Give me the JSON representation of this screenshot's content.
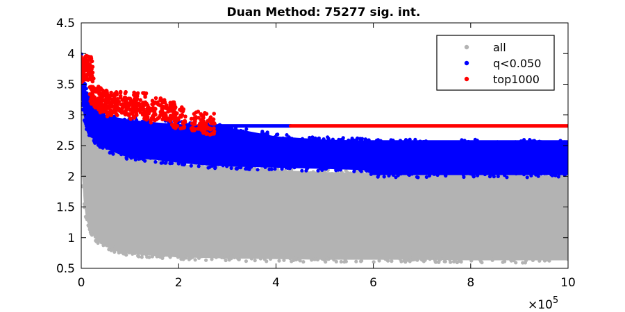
{
  "chart_data": {
    "type": "scatter",
    "title": "Duan Method: 75277 sig. int.",
    "xlabel": "",
    "ylabel": "",
    "xlim": [
      0,
      1000000
    ],
    "ylim": [
      0.5,
      4.5
    ],
    "x_ticks": [
      0,
      200000,
      400000,
      600000,
      800000,
      1000000
    ],
    "x_tick_labels": [
      "0",
      "2",
      "4",
      "6",
      "8",
      "10"
    ],
    "x_exponent_label": "×10",
    "x_exponent_power": "5",
    "y_ticks": [
      0.5,
      1,
      1.5,
      2,
      2.5,
      3,
      3.5,
      4,
      4.5
    ],
    "y_tick_labels": [
      "0.5",
      "1",
      "1.5",
      "2",
      "2.5",
      "3",
      "3.5",
      "4",
      "4.5"
    ],
    "grid": false,
    "legend_position": "top-right",
    "series": [
      {
        "name": "all",
        "color": "#b3b3b3",
        "envelope_x": [
          0,
          5000,
          10000,
          20000,
          30000,
          50000,
          80000,
          100000,
          150000,
          200000,
          250000,
          300000,
          400000,
          500000,
          600000,
          700000,
          800000,
          900000,
          1000000
        ],
        "envelope_low": [
          2.2,
          1.6,
          1.3,
          1.1,
          0.97,
          0.85,
          0.77,
          0.74,
          0.7,
          0.68,
          0.67,
          0.66,
          0.65,
          0.64,
          0.64,
          0.64,
          0.63,
          0.63,
          0.63
        ],
        "envelope_high": [
          3.9,
          3.2,
          2.9,
          2.75,
          2.6,
          2.45,
          2.35,
          2.3,
          2.25,
          2.2,
          2.17,
          2.15,
          2.1,
          2.07,
          2.05,
          2.04,
          2.02,
          2.02,
          2.0
        ]
      },
      {
        "name": "q<0.050",
        "color": "#0000ff",
        "envelope_x": [
          0,
          5000,
          10000,
          20000,
          30000,
          50000,
          80000,
          100000,
          150000,
          200000,
          250000,
          300000,
          400000,
          500000,
          580000,
          600000,
          700000,
          800000,
          900000,
          1000000
        ],
        "envelope_low": [
          3.3,
          3.0,
          2.8,
          2.65,
          2.55,
          2.45,
          2.35,
          2.3,
          2.27,
          2.22,
          2.18,
          2.16,
          2.14,
          2.12,
          2.1,
          2.02,
          2.02,
          2.02,
          2.02,
          2.02
        ],
        "envelope_high": [
          4.0,
          3.6,
          3.4,
          3.25,
          3.1,
          3.0,
          2.95,
          2.92,
          2.88,
          2.85,
          2.83,
          2.8,
          2.65,
          2.6,
          2.58,
          2.56,
          2.56,
          2.56,
          2.56,
          2.56
        ]
      },
      {
        "name": "top1000",
        "color": "#ff0000",
        "clusters": [
          {
            "x": 5000,
            "y": 3.75
          },
          {
            "x": 8000,
            "y": 3.8
          },
          {
            "x": 12000,
            "y": 3.7
          },
          {
            "x": 30000,
            "y": 3.3
          },
          {
            "x": 40000,
            "y": 3.25
          },
          {
            "x": 50000,
            "y": 3.2
          },
          {
            "x": 60000,
            "y": 3.15
          },
          {
            "x": 80000,
            "y": 3.2
          },
          {
            "x": 100000,
            "y": 3.1
          },
          {
            "x": 120000,
            "y": 3.2
          },
          {
            "x": 140000,
            "y": 3.05
          },
          {
            "x": 160000,
            "y": 3.1
          },
          {
            "x": 180000,
            "y": 3.05
          },
          {
            "x": 200000,
            "y": 2.95
          },
          {
            "x": 240000,
            "y": 2.88
          },
          {
            "x": 260000,
            "y": 2.85
          }
        ],
        "plateau": {
          "x_start": 430000,
          "x_end": 1000000,
          "y": 2.82
        }
      }
    ],
    "horizontal_lines": [
      {
        "series": "q<0.050",
        "x_start": 240000,
        "x_end": 430000,
        "y": 2.82
      },
      {
        "series": "q<0.050",
        "x_start": 500000,
        "x_end": 1000000,
        "y": 2.56
      },
      {
        "series": "q<0.050",
        "x_start": 600000,
        "x_end": 1000000,
        "y": 2.44
      },
      {
        "series": "q<0.050",
        "x_start": 900000,
        "x_end": 1000000,
        "y": 2.38
      }
    ]
  }
}
